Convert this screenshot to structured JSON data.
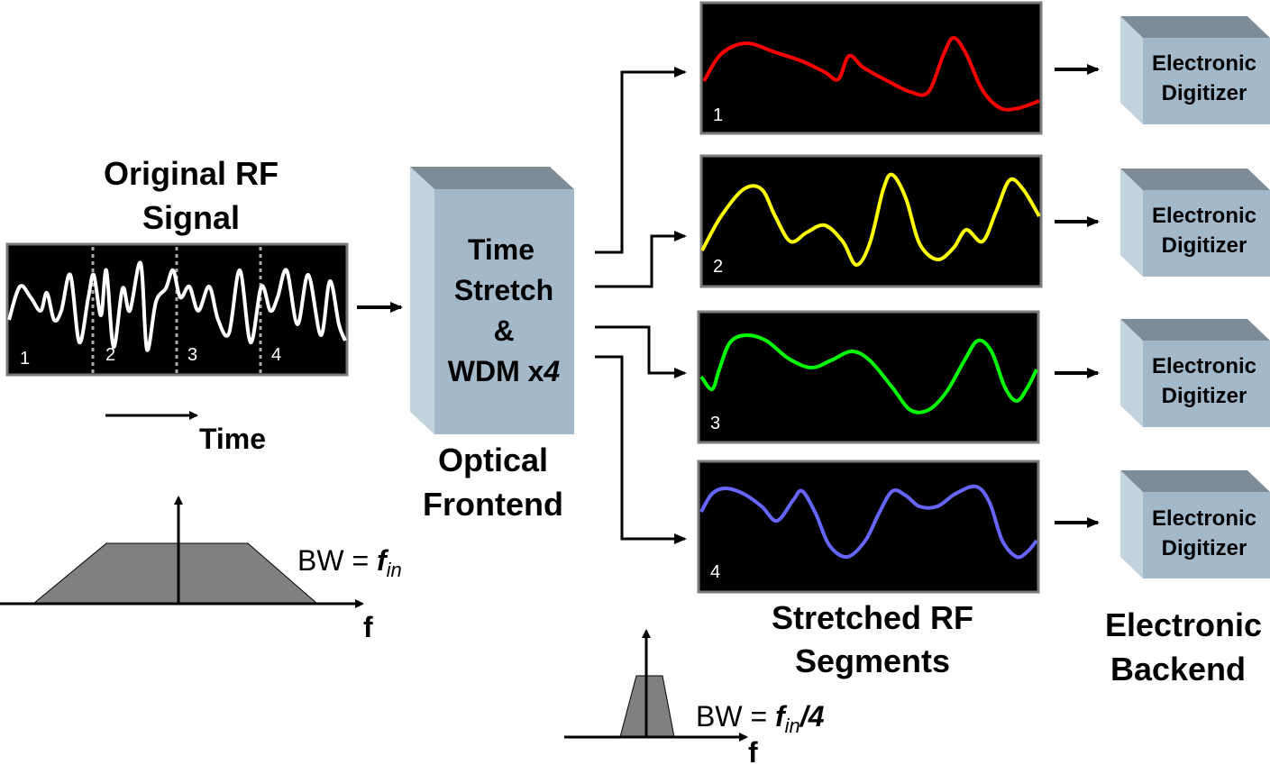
{
  "input": {
    "title_line1": "Original RF",
    "title_line2": "Signal",
    "segments": [
      "1",
      "2",
      "3",
      "4"
    ],
    "time_label": "Time",
    "freq_axis": "f",
    "bw_prefix": "BW = ",
    "bw_var": "f",
    "bw_sub": "in"
  },
  "frontend": {
    "box_line1": "Time",
    "box_line2": "Stretch",
    "box_line3": "&",
    "box_line4": "WDM x",
    "box_line4_ital": "4",
    "caption_line1": "Optical",
    "caption_line2": "Frontend"
  },
  "outputs": {
    "channels": [
      {
        "label": "1",
        "color": "#ff0000"
      },
      {
        "label": "2",
        "color": "#ffff00"
      },
      {
        "label": "3",
        "color": "#00ff00"
      },
      {
        "label": "4",
        "color": "#6666ff"
      }
    ],
    "caption_line1": "Stretched RF",
    "caption_line2": "Segments",
    "freq_axis": "f",
    "bw_prefix": "BW = ",
    "bw_var": "f",
    "bw_sub": "in",
    "bw_suffix": "/4"
  },
  "backend": {
    "digitizers": [
      {
        "line1": "Electronic",
        "line2": "Digitizer"
      },
      {
        "line1": "Electronic",
        "line2": "Digitizer"
      },
      {
        "line1": "Electronic",
        "line2": "Digitizer"
      },
      {
        "line1": "Electronic",
        "line2": "Digitizer"
      }
    ],
    "caption_line1": "Electronic",
    "caption_line2": "Backend"
  },
  "colors": {
    "box_front": "#a3b8c8",
    "box_top": "#7e8c97",
    "box_side": "#c2d3de",
    "spectrum_fill": "#808080",
    "input_wave": "#ffffff"
  }
}
